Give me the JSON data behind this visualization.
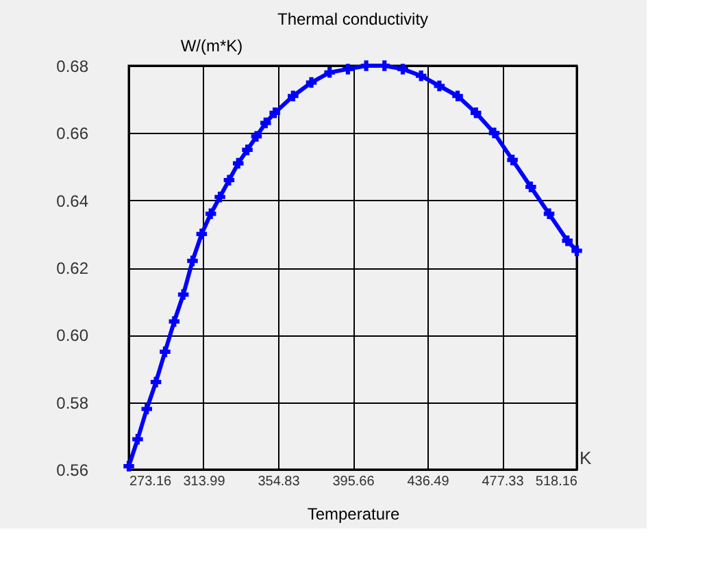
{
  "chart_data": {
    "type": "line",
    "title": "Thermal conductivity",
    "xlabel": "Temperature",
    "ylabel": "W/(m*K)",
    "annotations": [
      "K"
    ],
    "x": [
      273.16,
      278,
      283,
      288,
      293,
      298,
      303,
      308,
      313,
      318,
      323,
      328,
      333,
      338,
      343,
      348,
      353,
      363,
      373,
      383,
      393,
      403,
      413,
      423,
      433,
      443,
      453,
      463,
      473,
      483,
      493,
      503,
      513,
      518.16
    ],
    "series": [
      {
        "color": "#0000ff",
        "values": [
          0.561,
          0.569,
          0.578,
          0.586,
          0.595,
          0.604,
          0.612,
          0.622,
          0.63,
          0.636,
          0.641,
          0.646,
          0.651,
          0.655,
          0.659,
          0.663,
          0.666,
          0.671,
          0.675,
          0.678,
          0.679,
          0.68,
          0.68,
          0.679,
          0.677,
          0.674,
          0.671,
          0.666,
          0.66,
          0.652,
          0.644,
          0.636,
          0.628,
          0.625
        ]
      }
    ],
    "xlim": [
      273.16,
      518.16
    ],
    "xticks": [
      273.16,
      313.99,
      354.83,
      395.66,
      436.49,
      477.33,
      518.16
    ],
    "ylim": [
      0.56,
      0.68
    ],
    "yticks": [
      0.56,
      0.58,
      {
        "value": 0.6,
        "label": "0.60"
      },
      0.62,
      0.64,
      0.66,
      0.68
    ],
    "grid": true,
    "marker": "cross",
    "line_style": "solid"
  }
}
